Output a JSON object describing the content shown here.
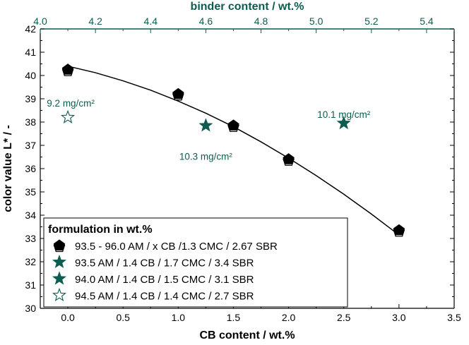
{
  "chart_data": {
    "type": "scatter",
    "xlabel": "CB content / wt.%",
    "ylabel": "color value L* / -",
    "top_xlabel": "binder content / wt.%",
    "xlim": [
      -0.25,
      3.5
    ],
    "ylim": [
      30,
      42
    ],
    "top_xlim": [
      4.0,
      5.5
    ],
    "x_ticks": [
      "0.0",
      "0.5",
      "1.0",
      "1.5",
      "2.0",
      "2.5",
      "3.0",
      "3.5"
    ],
    "y_ticks": [
      "30",
      "31",
      "32",
      "33",
      "34",
      "35",
      "36",
      "37",
      "38",
      "39",
      "40",
      "41",
      "42"
    ],
    "top_x_ticks": [
      "4.0",
      "4.2",
      "4.4",
      "4.6",
      "4.8",
      "5.0",
      "5.2",
      "5.4"
    ],
    "grid": false,
    "legend_placement": "bottom-left",
    "legend_title": "formulation in wt.%",
    "series": [
      {
        "name": "93.5 - 96.0 AM / x CB /1.3 CMC / 2.67 SBR",
        "marker": "pentagon",
        "color": "#000000",
        "fill": "#000000",
        "x": [
          0.0,
          1.0,
          1.5,
          2.0,
          3.0
        ],
        "y": [
          40.25,
          39.2,
          37.85,
          36.4,
          33.35
        ]
      },
      {
        "name": "93.5 AM / 1.4 CB  / 1.7 CMC / 3.4 SBR",
        "marker": "star",
        "color": "#0d5c50",
        "fill": "#0d5c50",
        "x": [
          2.5
        ],
        "y": [
          37.95
        ]
      },
      {
        "name": "94.0 AM / 1.4 CB  / 1.5 CMC / 3.1 SBR",
        "marker": "star",
        "color": "#0d5c50",
        "fill": "#0d5c50",
        "x": [
          1.25
        ],
        "y": [
          37.85
        ]
      },
      {
        "name": "94.5 AM / 1.4 CB / 1.4 CMC / 2.7 SBR",
        "marker": "star",
        "color": "#0d5c50",
        "fill": "#ffffff",
        "x": [
          0.0
        ],
        "y": [
          38.2
        ]
      }
    ],
    "fit_curve": {
      "color": "#000000",
      "x": [
        0.0,
        0.25,
        0.5,
        0.75,
        1.0,
        1.25,
        1.5,
        1.75,
        2.0,
        2.25,
        2.5,
        2.75,
        3.0
      ],
      "y": [
        40.4,
        40.12,
        39.77,
        39.37,
        38.9,
        38.38,
        37.8,
        37.15,
        36.45,
        35.7,
        34.9,
        34.05,
        33.15
      ]
    },
    "annotations": [
      {
        "text": "9.2 mg/cm²",
        "x": 0.0,
        "y": 38.55
      },
      {
        "text": "10.3 mg/cm²",
        "x": 1.25,
        "y": 36.75
      },
      {
        "text": "10.1 mg/cm²",
        "x": 2.5,
        "y": 38.55
      }
    ]
  },
  "colors": {
    "accent": "#0d5c50",
    "axis": "#000000"
  }
}
